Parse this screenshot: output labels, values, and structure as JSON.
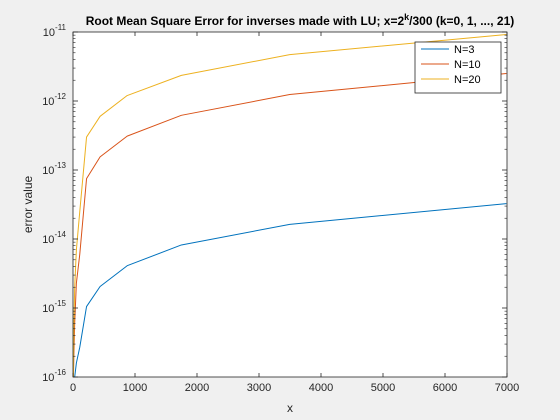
{
  "chart_data": {
    "type": "line",
    "title": {
      "prefix": "Root Mean Square Error for inverses made with LU; x=2",
      "superscript": "k",
      "suffix": "/300 (k=0, 1, ..., 21)"
    },
    "xlabel": "x",
    "ylabel": "error value",
    "xlim": [
      0,
      7000
    ],
    "ylim": [
      1e-16,
      1e-11
    ],
    "yscale": "log",
    "grid": false,
    "legend_position": "top-right",
    "x_ticks": [
      0,
      1000,
      2000,
      3000,
      4000,
      5000,
      6000,
      7000
    ],
    "x_tick_labels": [
      "0",
      "1000",
      "2000",
      "3000",
      "4000",
      "5000",
      "6000",
      "7000"
    ],
    "y_ticks": [
      {
        "value": 1e-16,
        "base": "10",
        "exp": "-16"
      },
      {
        "value": 1e-15,
        "base": "10",
        "exp": "-15"
      },
      {
        "value": 1e-14,
        "base": "10",
        "exp": "-14"
      },
      {
        "value": 1e-13,
        "base": "10",
        "exp": "-13"
      },
      {
        "value": 1e-12,
        "base": "10",
        "exp": "-12"
      },
      {
        "value": 1e-11,
        "base": "10",
        "exp": "-11"
      }
    ],
    "x": [
      0.00333,
      0.00667,
      0.01333,
      0.02667,
      0.05333,
      0.10667,
      0.21333,
      0.42667,
      0.85333,
      1.70667,
      3.41333,
      6.82667,
      13.65333,
      27.30667,
      54.61333,
      109.22667,
      218.45333,
      436.90667,
      873.81333,
      1747.62667,
      3495.25333,
      6990.50667
    ],
    "series": [
      {
        "name": "N=3",
        "color": "#0072bd",
        "values": [
          1e-16,
          1e-16,
          1e-16,
          1e-16,
          1e-16,
          1e-16,
          1e-16,
          1e-16,
          1e-16,
          1e-16,
          1e-16,
          1e-16,
          1e-16,
          1e-16,
          1.6e-16,
          2.7e-16,
          1.05e-15,
          2.05e-15,
          4.1e-15,
          8.2e-15,
          1.63e-14,
          3.25e-14
        ]
      },
      {
        "name": "N=10",
        "color": "#d95319",
        "values": [
          1e-16,
          1e-16,
          1e-16,
          1e-16,
          1e-16,
          1e-16,
          1e-16,
          1e-16,
          1e-16,
          1e-16,
          1e-16,
          1e-16,
          2e-16,
          6e-16,
          2.3e-15,
          6e-15,
          7.5e-14,
          1.55e-13,
          3.1e-13,
          6.2e-13,
          1.24e-12,
          2.5e-12
        ]
      },
      {
        "name": "N=20",
        "color": "#edb120",
        "values": [
          1e-16,
          1e-16,
          1e-16,
          1e-16,
          1e-16,
          1e-16,
          1e-16,
          1e-16,
          1e-16,
          1e-16,
          1e-16,
          1e-16,
          5e-16,
          2e-15,
          7e-15,
          2.5e-14,
          3e-13,
          6e-13,
          1.2e-12,
          2.35e-12,
          4.7e-12,
          9.2e-12
        ]
      }
    ]
  }
}
